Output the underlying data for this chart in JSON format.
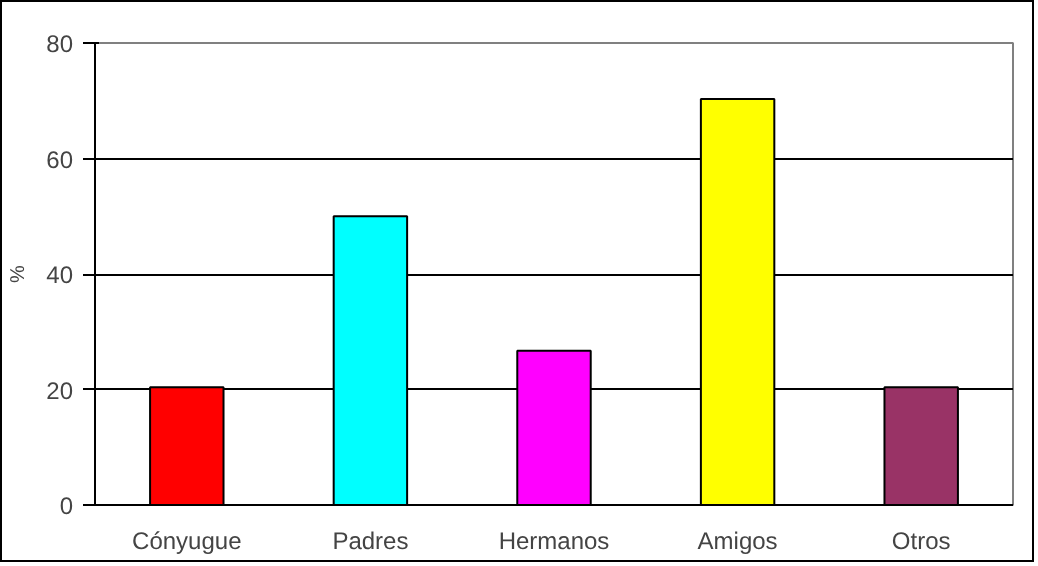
{
  "chart_data": {
    "type": "bar",
    "ylabel": "%",
    "categories": [
      "Cónyugue",
      "Padres",
      "Hermanos",
      "Amigos",
      "Otros"
    ],
    "values": [
      20.4,
      50,
      26.7,
      70.3,
      20.4
    ],
    "colors": [
      "#ff0000",
      "#00ffff",
      "#ff00ff",
      "#ffff00",
      "#993366"
    ],
    "ylim": [
      0,
      80
    ],
    "yticks": [
      0,
      20,
      40,
      60,
      80
    ],
    "grid": "y"
  }
}
